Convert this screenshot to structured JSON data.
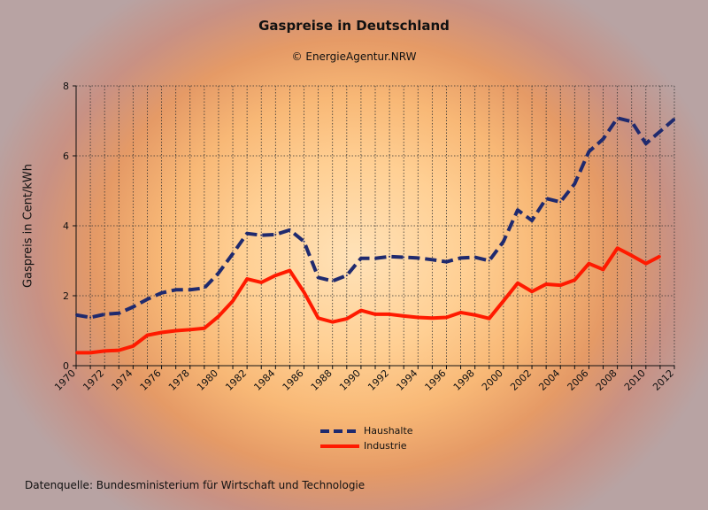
{
  "chart_data": {
    "type": "line",
    "title": "Gaspreise in Deutschland",
    "subtitle": "© EnergieAgentur.NRW",
    "ylabel": "Gaspreis in Cent/kWh",
    "xlabel": "",
    "xlim": [
      1970,
      2012
    ],
    "ylim": [
      0,
      8
    ],
    "yticks": [
      0,
      2,
      4,
      6,
      8
    ],
    "xticks": [
      1970,
      1972,
      1974,
      1976,
      1978,
      1980,
      1982,
      1984,
      1986,
      1988,
      1990,
      1992,
      1994,
      1996,
      1998,
      2000,
      2002,
      2004,
      2006,
      2008,
      2010,
      2012
    ],
    "grid": true,
    "legend_position": "bottom-center",
    "source_note": "Datenquelle: Bundesministerium für Wirtschaft und Technologie",
    "series": [
      {
        "name": "Haushalte",
        "color": "#1f2a6e",
        "style": "dashed",
        "x": [
          1970,
          1971,
          1972,
          1973,
          1974,
          1975,
          1976,
          1977,
          1978,
          1979,
          1980,
          1981,
          1982,
          1983,
          1984,
          1985,
          1986,
          1987,
          1988,
          1989,
          1990,
          1991,
          1992,
          1993,
          1994,
          1995,
          1996,
          1997,
          1998,
          1999,
          2000,
          2001,
          2002,
          2003,
          2004,
          2005,
          2006,
          2007,
          2008,
          2009,
          2010,
          2011,
          2012
        ],
        "values": [
          1.45,
          1.38,
          1.47,
          1.5,
          1.68,
          1.9,
          2.08,
          2.17,
          2.17,
          2.22,
          2.65,
          3.2,
          3.78,
          3.73,
          3.75,
          3.88,
          3.55,
          2.52,
          2.42,
          2.58,
          3.07,
          3.07,
          3.12,
          3.1,
          3.08,
          3.03,
          2.97,
          3.08,
          3.1,
          3.0,
          3.55,
          4.45,
          4.15,
          4.78,
          4.68,
          5.2,
          6.12,
          6.48,
          7.08,
          6.98,
          6.35,
          6.7,
          7.05
        ]
      },
      {
        "name": "Industrie",
        "color": "#ff1a00",
        "style": "solid",
        "x": [
          1970,
          1971,
          1972,
          1973,
          1974,
          1975,
          1976,
          1977,
          1978,
          1979,
          1980,
          1981,
          1982,
          1983,
          1984,
          1985,
          1986,
          1987,
          1988,
          1989,
          1990,
          1991,
          1992,
          1993,
          1994,
          1995,
          1996,
          1997,
          1998,
          1999,
          2000,
          2001,
          2002,
          2003,
          2004,
          2005,
          2006,
          2007,
          2008,
          2009,
          2010,
          2011
        ],
        "values": [
          0.37,
          0.37,
          0.42,
          0.44,
          0.56,
          0.87,
          0.95,
          1.0,
          1.03,
          1.07,
          1.41,
          1.85,
          2.48,
          2.38,
          2.58,
          2.72,
          2.1,
          1.36,
          1.25,
          1.34,
          1.58,
          1.47,
          1.47,
          1.42,
          1.38,
          1.36,
          1.38,
          1.52,
          1.45,
          1.35,
          1.85,
          2.36,
          2.12,
          2.33,
          2.3,
          2.45,
          2.92,
          2.75,
          3.36,
          3.15,
          2.92,
          3.13
        ]
      }
    ]
  }
}
